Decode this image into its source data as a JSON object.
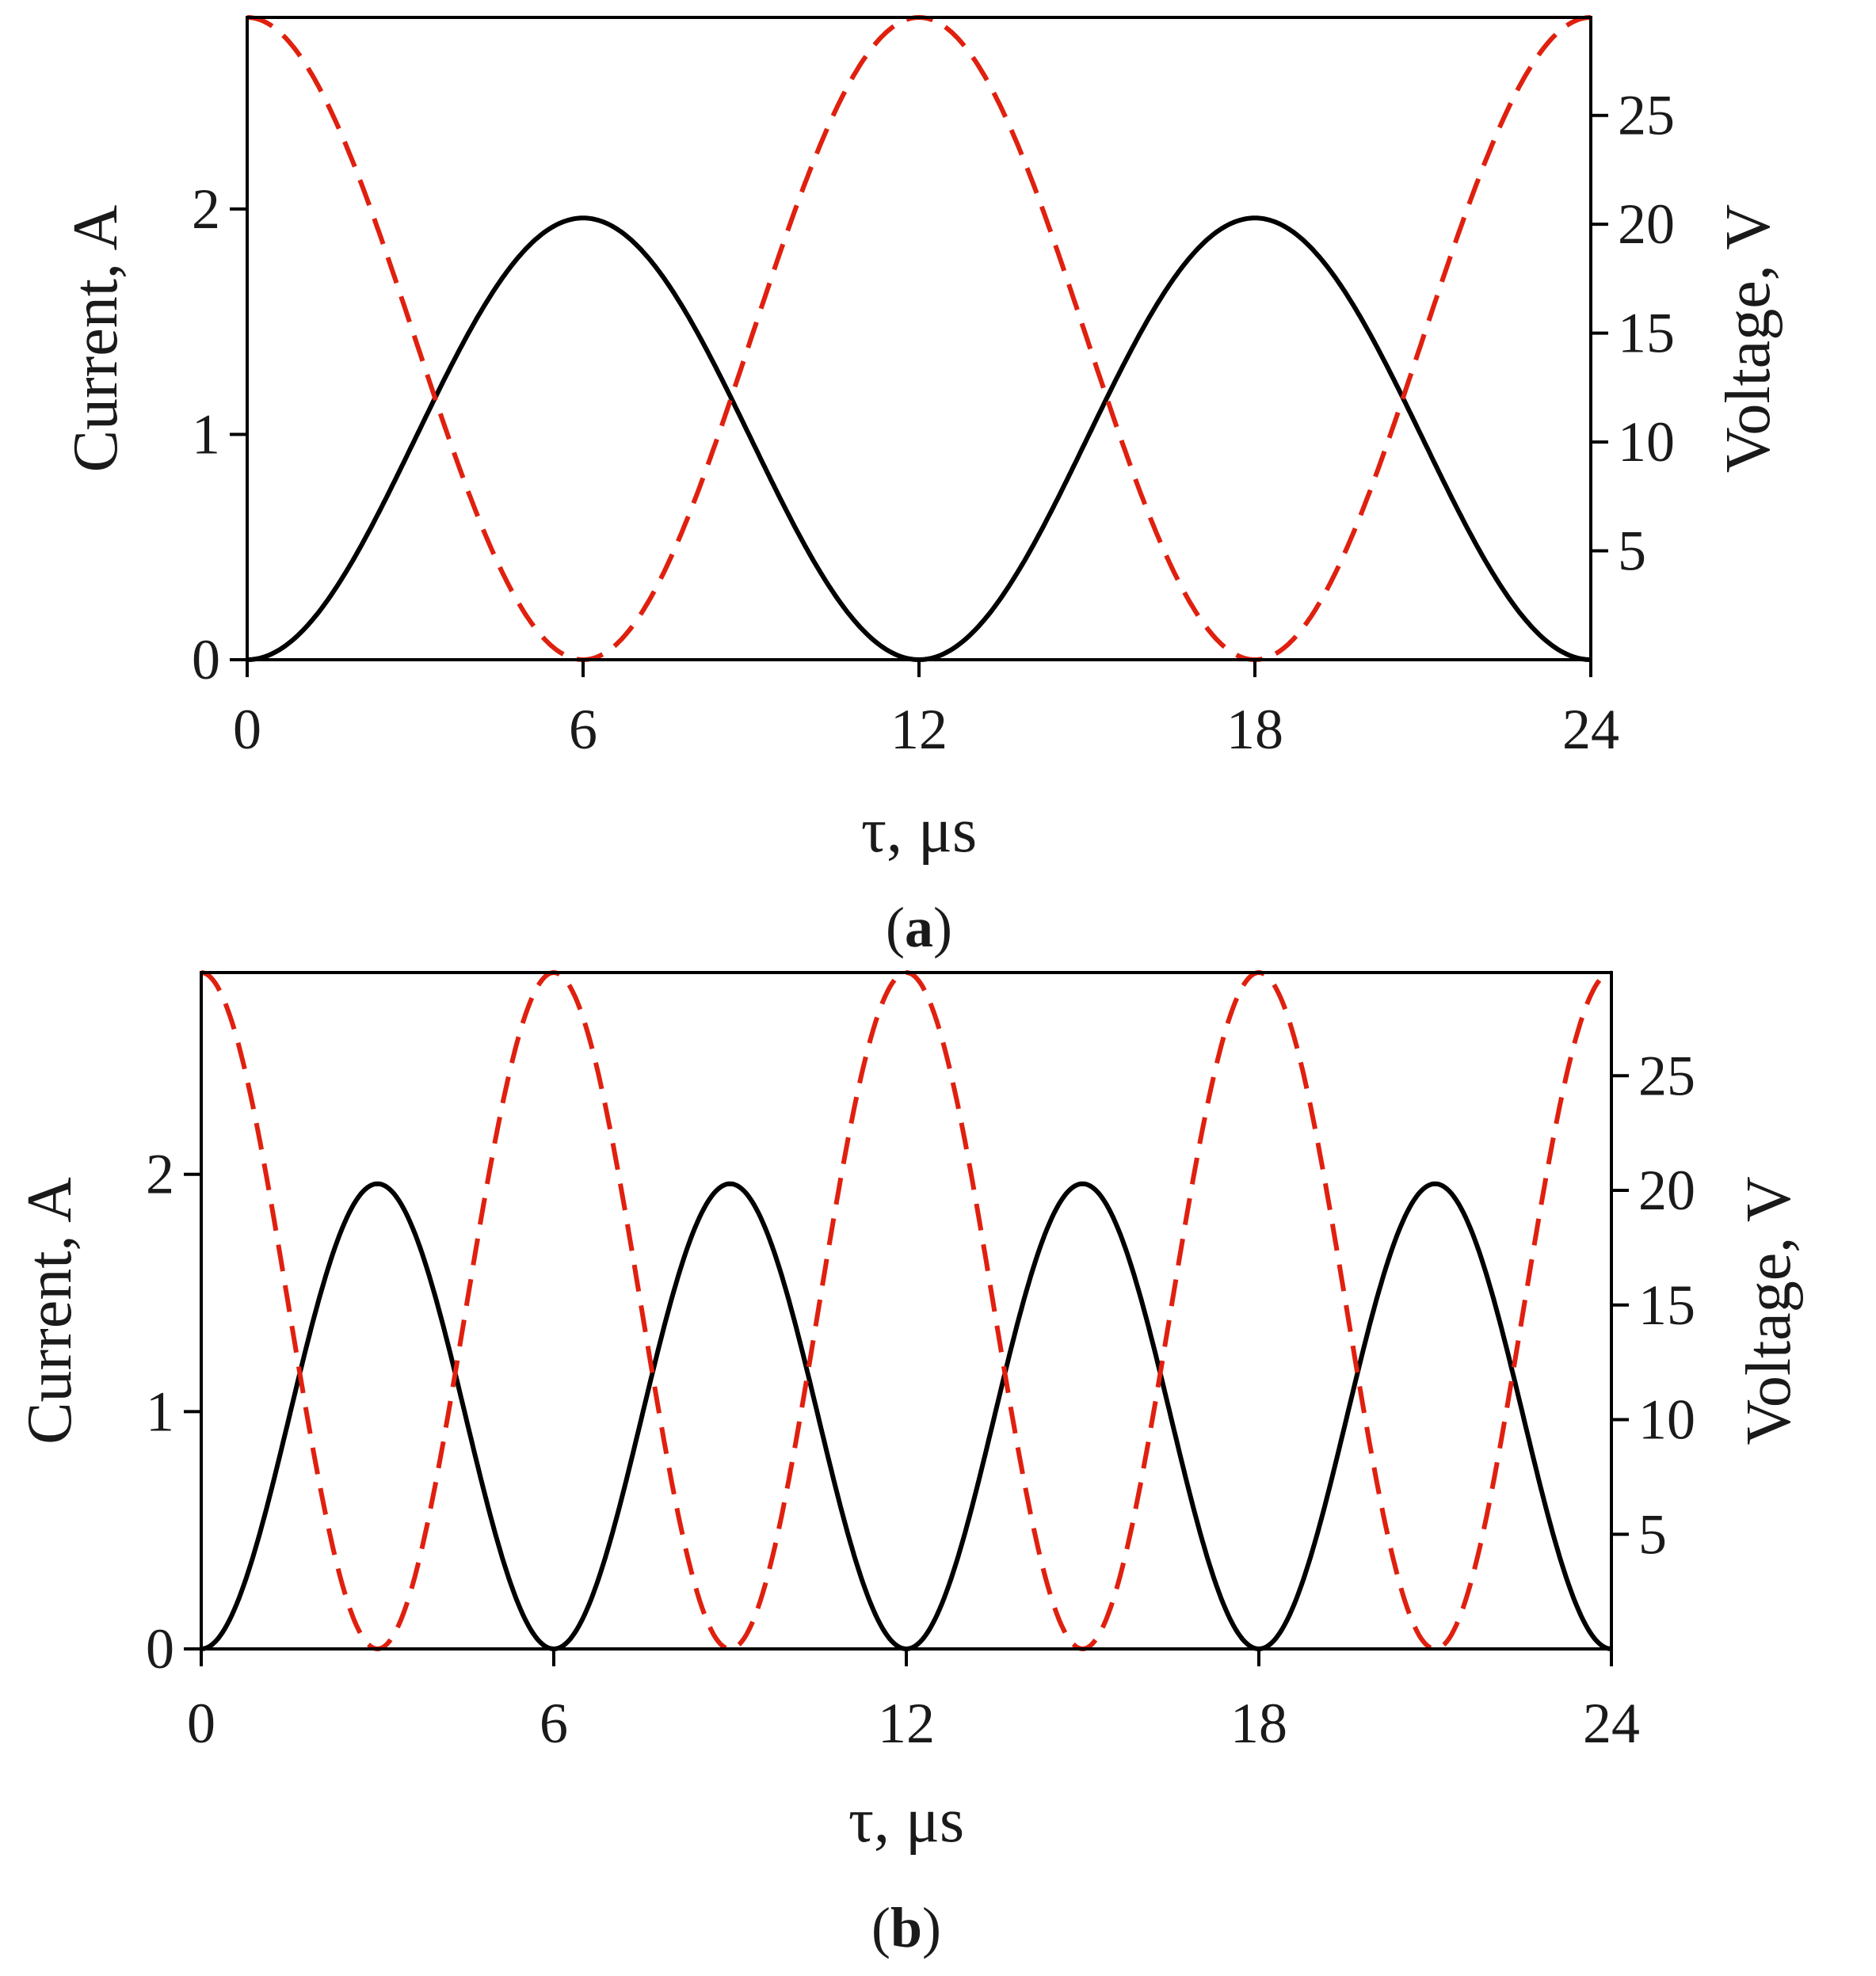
{
  "colors": {
    "current": "#000000",
    "voltage": "#e0200f",
    "axis": "#000000",
    "text": "#1a1a1a"
  },
  "chart_data": [
    {
      "type": "line",
      "panel_label_prefix": "(",
      "panel_label_letter": "a",
      "panel_label_suffix": ")",
      "xlabel": "τ, μs",
      "ylabel_left": "Current, A",
      "ylabel_right": "Voltage, V",
      "xlim": [
        0,
        24
      ],
      "ylim_left": [
        0,
        2.85
      ],
      "ylim_right": [
        0,
        29.5
      ],
      "xticks": [
        "0",
        "6",
        "12",
        "18",
        "24"
      ],
      "yticks_left": [
        "0",
        "1",
        "2"
      ],
      "yticks_right": [
        "5",
        "10",
        "15",
        "20",
        "25"
      ],
      "grid": false,
      "series": [
        {
          "axis": "left",
          "style": "solid",
          "shape": "1 - cos(2πτ/12)",
          "period_us": 12,
          "min": 0,
          "max": 1.96,
          "x": [
            0,
            3,
            6,
            9,
            12,
            15,
            18,
            21,
            24
          ],
          "y": [
            0,
            0.98,
            1.96,
            0.98,
            0,
            0.98,
            1.96,
            0.98,
            0
          ]
        },
        {
          "axis": "right",
          "style": "dashed",
          "shape": "1 + cos(2πτ/12)",
          "period_us": 12,
          "min": 0,
          "max": 29.5,
          "x": [
            0,
            3,
            6,
            9,
            12,
            15,
            18,
            21,
            24
          ],
          "y": [
            29.5,
            14.75,
            0,
            14.75,
            29.5,
            14.75,
            0,
            14.75,
            29.5
          ]
        }
      ]
    },
    {
      "type": "line",
      "panel_label_prefix": "(",
      "panel_label_letter": "b",
      "panel_label_suffix": ")",
      "xlabel": "τ, μs",
      "ylabel_left": "Current, A",
      "ylabel_right": "Voltage, V",
      "xlim": [
        0,
        24
      ],
      "ylim_left": [
        0,
        2.85
      ],
      "ylim_right": [
        0,
        29.5
      ],
      "xticks": [
        "0",
        "6",
        "12",
        "18",
        "24"
      ],
      "yticks_left": [
        "0",
        "1",
        "2"
      ],
      "yticks_right": [
        "5",
        "10",
        "15",
        "20",
        "25"
      ],
      "grid": false,
      "series": [
        {
          "axis": "left",
          "style": "solid",
          "shape": "1 - cos(2πτ/6)",
          "period_us": 6,
          "min": 0,
          "max": 1.96,
          "x": [
            0,
            3,
            6,
            9,
            12,
            15,
            18,
            21,
            24
          ],
          "y": [
            0,
            1.96,
            0,
            1.96,
            0,
            1.96,
            0,
            1.96,
            0
          ]
        },
        {
          "axis": "right",
          "style": "dashed",
          "shape": "1 + cos(2πτ/6)",
          "period_us": 6,
          "min": 0,
          "max": 29.5,
          "x": [
            0,
            3,
            6,
            9,
            12,
            15,
            18,
            21,
            24
          ],
          "y": [
            29.5,
            0,
            29.5,
            0,
            29.5,
            0,
            29.5,
            0,
            29.5
          ]
        }
      ]
    }
  ]
}
